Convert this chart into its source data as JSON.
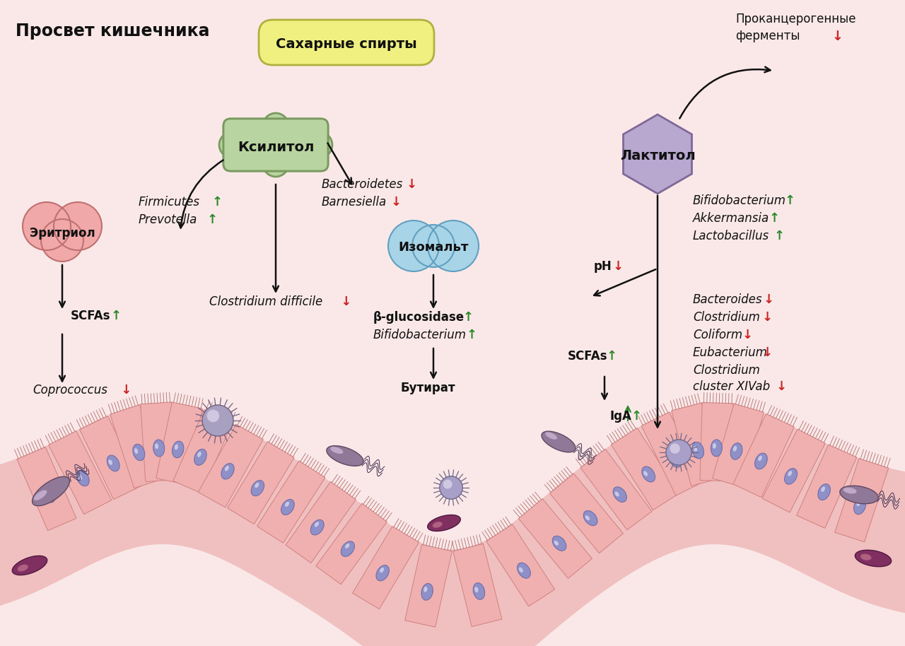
{
  "bg_color": "#fae8e8",
  "title_text": "Просвет кишечника",
  "sugar_alcohols_label": "Сахарные спирты",
  "sugar_alcohols_box_color": "#f0f080",
  "sugar_alcohols_box_edge": "#b0b040",
  "xylitol_label": "Ксилитол",
  "xylitol_box_color": "#b8d4a0",
  "xylitol_box_edge": "#7a9a60",
  "erythritol_label": "Эритриол",
  "erythritol_box_color": "#f0a8a8",
  "erythritol_box_edge": "#c07070",
  "isomalt_label": "Изомальт",
  "isomalt_box_color": "#a8d4e8",
  "isomalt_box_edge": "#60a0c0",
  "lactitol_label": "Лактитол",
  "lactitol_box_color": "#b8a8d0",
  "lactitol_box_edge": "#806898",
  "text_green": "#2a8a2a",
  "text_red": "#cc2222",
  "text_black": "#111111",
  "cell_color": "#f0b0b0",
  "cell_edge": "#d08080",
  "nucleus_color": "#9090c8",
  "nucleus_edge": "#6868a0",
  "intestine_bg": "#f5c8c8",
  "intestine_light": "#fad8d8"
}
